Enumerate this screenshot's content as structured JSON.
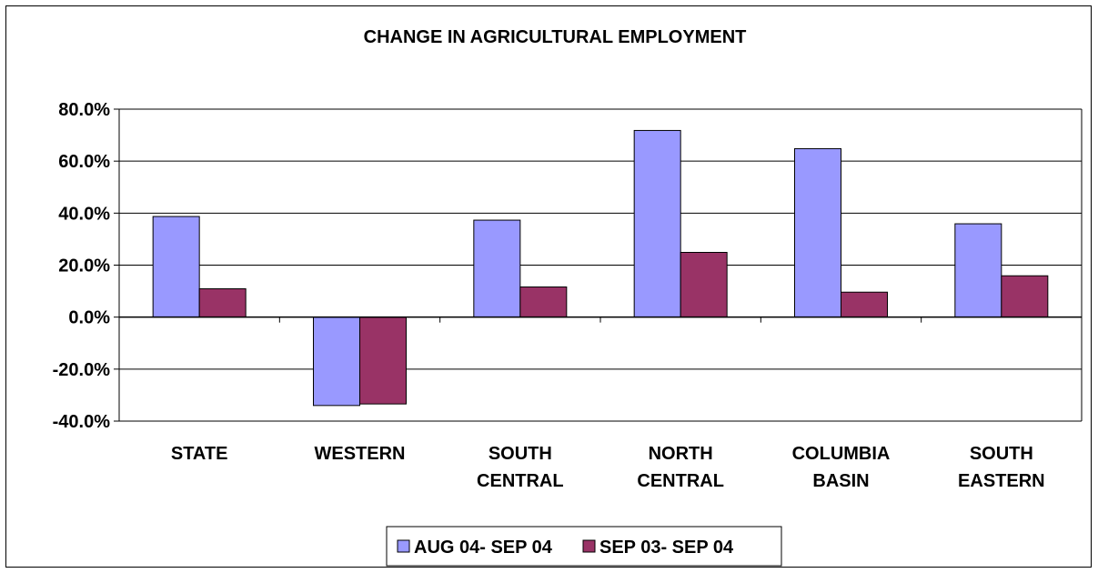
{
  "chart_data": {
    "type": "bar",
    "title": "CHANGE IN AGRICULTURAL EMPLOYMENT",
    "xlabel": "",
    "ylabel": "",
    "categories": [
      [
        "STATE"
      ],
      [
        "WESTERN"
      ],
      [
        "SOUTH",
        "CENTRAL"
      ],
      [
        "NORTH",
        "CENTRAL"
      ],
      [
        "COLUMBIA",
        "BASIN"
      ],
      [
        "SOUTH",
        "EASTERN"
      ]
    ],
    "series": [
      {
        "name": "AUG 04- SEP 04",
        "color": "#9999ff",
        "values": [
          38.7,
          -34.0,
          37.3,
          71.8,
          64.8,
          35.9
        ]
      },
      {
        "name": "SEP 03- SEP 04",
        "color": "#993366",
        "values": [
          10.9,
          -33.4,
          11.6,
          24.9,
          9.6,
          15.9
        ]
      }
    ],
    "ylim": [
      -40,
      80
    ],
    "yticks": [
      80,
      60,
      40,
      20,
      0,
      -20,
      -40
    ],
    "ytick_labels": [
      "80.0%",
      "60.0%",
      "40.0%",
      "20.0%",
      "0.0%",
      "-20.0%",
      "-40.0%"
    ],
    "grid": true,
    "legend_position": "bottom"
  }
}
